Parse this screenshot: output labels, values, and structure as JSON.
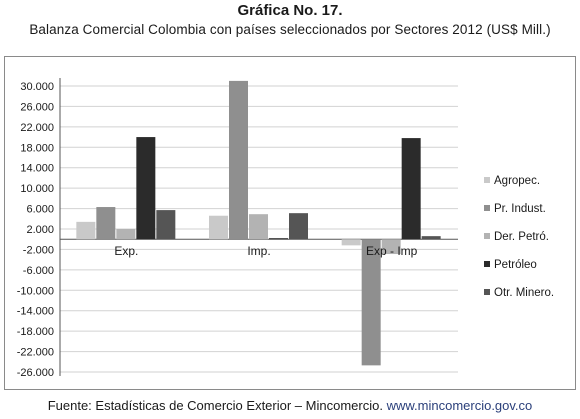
{
  "chart_data": {
    "type": "bar",
    "title": "Gráfica No. 17.",
    "subtitle": "Balanza Comercial Colombia con países seleccionados por Sectores 2012  (US$ Mill.)",
    "categories": [
      "Exp.",
      "Imp.",
      "Exp - Imp"
    ],
    "y_ticks": [
      "30.000",
      "26.000",
      "22.000",
      "18.000",
      "14.000",
      "10.000",
      "6.000",
      "2.000",
      "-2.000",
      "-6.000",
      "-10.000",
      "-14.000",
      "-18.000",
      "-22.000",
      "-26.000"
    ],
    "ylim": [
      -26000,
      32000
    ],
    "grid": true,
    "legend_position": "right",
    "series": [
      {
        "name": "Agropec.",
        "color": "#c9c9c9",
        "values": [
          3400,
          4600,
          -1200
        ]
      },
      {
        "name": "Pr. Indust.",
        "color": "#8f8f8f",
        "values": [
          6300,
          31000,
          -24700
        ]
      },
      {
        "name": "Der. Petró.",
        "color": "#b3b3b3",
        "values": [
          2000,
          4900,
          -2900
        ]
      },
      {
        "name": "Petróleo",
        "color": "#2b2b2b",
        "values": [
          20000,
          200,
          19800
        ]
      },
      {
        "name": "Otr. Minero.",
        "color": "#555555",
        "values": [
          5700,
          5100,
          600
        ]
      }
    ]
  },
  "footer": {
    "text": "Fuente: Estadísticas de Comercio Exterior – Mincomercio.",
    "link": "www.mincomercio.gov.co"
  }
}
